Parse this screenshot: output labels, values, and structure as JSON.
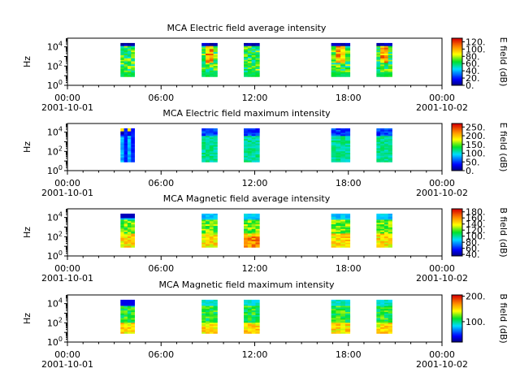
{
  "chart_data": [
    {
      "type": "heatmap",
      "title": "MCA  Electric field average intensity",
      "ylabel": "Hz",
      "y_scale": "log",
      "y_ticks": [
        {
          "base": "10",
          "exp": "0"
        },
        {
          "base": "10",
          "exp": "2"
        },
        {
          "base": "10",
          "exp": "4"
        }
      ],
      "x_ticks": [
        {
          "time": "00:00",
          "date": "2001-10-01"
        },
        {
          "time": "06:00",
          "date": ""
        },
        {
          "time": "12:00",
          "date": ""
        },
        {
          "time": "18:00",
          "date": ""
        },
        {
          "time": "00:00",
          "date": "2001-10-02"
        }
      ],
      "x_range_hours": [
        0,
        24
      ],
      "colorbar": {
        "label": "E field (dB)",
        "ticks": [
          "0.",
          "20.",
          "40.",
          "60.",
          "80.",
          "100.",
          "120."
        ],
        "range": [
          0,
          130
        ]
      },
      "data_intervals_hours": [
        [
          3.4,
          4.3
        ],
        [
          8.6,
          9.6
        ],
        [
          11.3,
          12.3
        ],
        [
          16.9,
          18.1
        ],
        [
          19.8,
          20.8
        ]
      ],
      "style": "eavg"
    },
    {
      "type": "heatmap",
      "title": "MCA  Electric field maximum intensity",
      "ylabel": "Hz",
      "y_scale": "log",
      "y_ticks": [
        {
          "base": "10",
          "exp": "0"
        },
        {
          "base": "10",
          "exp": "2"
        },
        {
          "base": "10",
          "exp": "4"
        }
      ],
      "x_ticks": [
        {
          "time": "00:00",
          "date": "2001-10-01"
        },
        {
          "time": "06:00",
          "date": ""
        },
        {
          "time": "12:00",
          "date": ""
        },
        {
          "time": "18:00",
          "date": ""
        },
        {
          "time": "00:00",
          "date": "2001-10-02"
        }
      ],
      "x_range_hours": [
        0,
        24
      ],
      "colorbar": {
        "label": "E field (dB)",
        "ticks": [
          "0.",
          "50.",
          "100.",
          "150.",
          "200.",
          "250."
        ],
        "range": [
          0,
          270
        ]
      },
      "data_intervals_hours": [
        [
          3.4,
          4.3
        ],
        [
          8.6,
          9.6
        ],
        [
          11.3,
          12.3
        ],
        [
          16.9,
          18.1
        ],
        [
          19.8,
          20.8
        ]
      ],
      "style": "emax"
    },
    {
      "type": "heatmap",
      "title": "MCA  Magnetic field average intensity",
      "ylabel": "Hz",
      "y_scale": "log",
      "y_ticks": [
        {
          "base": "10",
          "exp": "0"
        },
        {
          "base": "10",
          "exp": "2"
        },
        {
          "base": "10",
          "exp": "4"
        }
      ],
      "x_ticks": [
        {
          "time": "00:00",
          "date": "2001-10-01"
        },
        {
          "time": "06:00",
          "date": ""
        },
        {
          "time": "12:00",
          "date": ""
        },
        {
          "time": "18:00",
          "date": ""
        },
        {
          "time": "00:00",
          "date": "2001-10-02"
        }
      ],
      "x_range_hours": [
        0,
        24
      ],
      "colorbar": {
        "label": "B field (dB)",
        "ticks": [
          "40.",
          "60.",
          "80.",
          "100.",
          "120.",
          "140.",
          "160.",
          "180."
        ],
        "range": [
          35,
          190
        ]
      },
      "data_intervals_hours": [
        [
          3.4,
          4.3
        ],
        [
          8.6,
          9.6
        ],
        [
          11.3,
          12.3
        ],
        [
          16.9,
          18.1
        ],
        [
          19.8,
          20.8
        ]
      ],
      "style": "bavg"
    },
    {
      "type": "heatmap",
      "title": "MCA  Magnetic field maximum intensity",
      "ylabel": "Hz",
      "y_scale": "log",
      "y_ticks": [
        {
          "base": "10",
          "exp": "0"
        },
        {
          "base": "10",
          "exp": "2"
        },
        {
          "base": "10",
          "exp": "4"
        }
      ],
      "x_ticks": [
        {
          "time": "00:00",
          "date": "2001-10-01"
        },
        {
          "time": "06:00",
          "date": ""
        },
        {
          "time": "12:00",
          "date": ""
        },
        {
          "time": "18:00",
          "date": ""
        },
        {
          "time": "00:00",
          "date": "2001-10-02"
        }
      ],
      "x_range_hours": [
        0,
        24
      ],
      "colorbar": {
        "label": "B field (dB)",
        "ticks": [
          "100.",
          "200."
        ],
        "range": [
          20,
          205
        ]
      },
      "data_intervals_hours": [
        [
          3.4,
          4.3
        ],
        [
          8.6,
          9.6
        ],
        [
          11.3,
          12.3
        ],
        [
          16.9,
          18.1
        ],
        [
          19.8,
          20.8
        ]
      ],
      "style": "bmax"
    }
  ]
}
